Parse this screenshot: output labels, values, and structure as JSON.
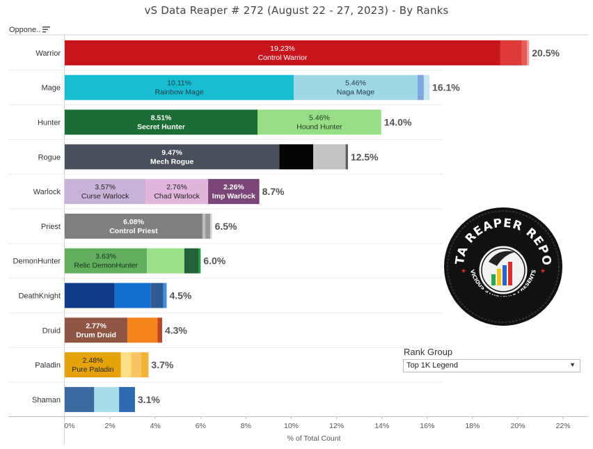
{
  "title": "vS Data Reaper #  272 (August 22 - 27, 2023) - By Ranks",
  "header": {
    "opponent_label": "Oppone.."
  },
  "filter": {
    "label": "Rank Group",
    "value": "Top 1K Legend"
  },
  "logo": {
    "text_top": "DATA REAPER REPORT",
    "text_bottom": "VICIOUS SYNDICATE PRESENTS"
  },
  "chart_data": {
    "type": "bar",
    "orientation": "horizontal",
    "stacked": true,
    "title": "vS Data Reaper #  272 (August 22 - 27, 2023) - By Ranks",
    "xlabel": "% of Total Count",
    "ylabel": "",
    "xlim": [
      0,
      22.5
    ],
    "xticks": [
      "0%",
      "2%",
      "4%",
      "6%",
      "8%",
      "10%",
      "12%",
      "14%",
      "16%",
      "18%",
      "20%",
      "22%"
    ],
    "grid": false,
    "rows": [
      {
        "class": "Warrior",
        "total": "20.5%",
        "segments": [
          {
            "pct": "19.23%",
            "name": "Control Warrior",
            "value": 19.23,
            "color": "#c8141c",
            "bold": false,
            "text_color": "#ffffff"
          },
          {
            "value": 0.95,
            "color": "#de3a3a"
          },
          {
            "value": 0.22,
            "color": "#e85b5b"
          },
          {
            "value": 0.1,
            "color": "#f2a3a3"
          }
        ]
      },
      {
        "class": "Mage",
        "total": "16.1%",
        "segments": [
          {
            "pct": "10.11%",
            "name": "Rainbow Mage",
            "value": 10.11,
            "color": "#19bdd2",
            "bold": false,
            "text_color": "#1d3a4a"
          },
          {
            "pct": "5.46%",
            "name": "Naga Mage",
            "value": 5.46,
            "color": "#9fd8e4",
            "bold": false,
            "text_color": "#1d3a4a"
          },
          {
            "value": 0.28,
            "color": "#7fa7dc"
          },
          {
            "value": 0.25,
            "color": "#c4e6ee"
          }
        ]
      },
      {
        "class": "Hunter",
        "total": "14.0%",
        "segments": [
          {
            "pct": "8.51%",
            "name": "Secret Hunter",
            "value": 8.51,
            "color": "#1a6d34",
            "bold": true,
            "text_color": "#ffffff"
          },
          {
            "pct": "5.46%",
            "name": "Hound Hunter",
            "value": 5.46,
            "color": "#97de86",
            "bold": false,
            "text_color": "#1e3a1e"
          }
        ]
      },
      {
        "class": "Rogue",
        "total": "12.5%",
        "segments": [
          {
            "pct": "9.47%",
            "name": "Mech Rogue",
            "value": 9.47,
            "color": "#4a4f5c",
            "bold": true,
            "text_color": "#ffffff"
          },
          {
            "value": 1.5,
            "color": "#050505"
          },
          {
            "value": 1.43,
            "color": "#c4c4c4"
          },
          {
            "value": 0.1,
            "color": "#5a5a5a"
          }
        ]
      },
      {
        "class": "Warlock",
        "total": "8.7%",
        "segments": [
          {
            "pct": "3.57%",
            "name": "Curse Warlock",
            "value": 3.57,
            "color": "#c8b3d8",
            "bold": false,
            "text_color": "#222222"
          },
          {
            "pct": "2.76%",
            "name": "Chad Warlock",
            "value": 2.76,
            "color": "#e2b6dc",
            "bold": false,
            "text_color": "#222222"
          },
          {
            "pct": "2.26%",
            "name": "Imp Warlock",
            "value": 2.26,
            "color": "#7a4677",
            "bold": true,
            "text_color": "#ffffff"
          }
        ]
      },
      {
        "class": "Priest",
        "total": "6.5%",
        "segments": [
          {
            "pct": "6.08%",
            "name": "Control Priest",
            "value": 6.08,
            "color": "#7f7f7f",
            "bold": true,
            "text_color": "#ffffff"
          },
          {
            "value": 0.12,
            "color": "#bdbdbd"
          },
          {
            "value": 0.22,
            "color": "#9a9a9a"
          },
          {
            "value": 0.08,
            "color": "#d5d5d5"
          }
        ]
      },
      {
        "class": "DemonHunter",
        "total": "6.0%",
        "segments": [
          {
            "pct": "3.63%",
            "name": "Relic DemonHunter",
            "value": 3.63,
            "color": "#64af5f",
            "bold": false,
            "text_color": "#15301a"
          },
          {
            "value": 1.65,
            "color": "#9ce08c"
          },
          {
            "value": 0.62,
            "color": "#23623a"
          },
          {
            "value": 0.1,
            "color": "#1e9f3a"
          }
        ]
      },
      {
        "class": "DeathKnight",
        "total": "4.5%",
        "segments": [
          {
            "value": 2.2,
            "color": "#0f3a86"
          },
          {
            "value": 1.6,
            "color": "#1470cc"
          },
          {
            "value": 0.55,
            "color": "#2f5a93"
          },
          {
            "value": 0.15,
            "color": "#3f8fde"
          }
        ]
      },
      {
        "class": "Druid",
        "total": "4.3%",
        "segments": [
          {
            "pct": "2.77%",
            "name": "Drum Druid",
            "value": 2.77,
            "color": "#8f5644",
            "bold": true,
            "text_color": "#ffffff"
          },
          {
            "value": 1.33,
            "color": "#f5841a"
          },
          {
            "value": 0.2,
            "color": "#b8472a"
          }
        ]
      },
      {
        "class": "Paladin",
        "total": "3.7%",
        "segments": [
          {
            "pct": "2.48%",
            "name": "Pure Paladin",
            "value": 2.48,
            "color": "#e5a20a",
            "bold": false,
            "text_color": "#222222"
          },
          {
            "value": 0.45,
            "color": "#fbdf85"
          },
          {
            "value": 0.45,
            "color": "#f9c560"
          },
          {
            "value": 0.32,
            "color": "#f2b33a"
          }
        ]
      },
      {
        "class": "Shaman",
        "total": "3.1%",
        "segments": [
          {
            "value": 1.3,
            "color": "#3c6aa0"
          },
          {
            "value": 1.1,
            "color": "#a8dbe8"
          },
          {
            "value": 0.7,
            "color": "#2f6ab0"
          }
        ]
      }
    ]
  }
}
